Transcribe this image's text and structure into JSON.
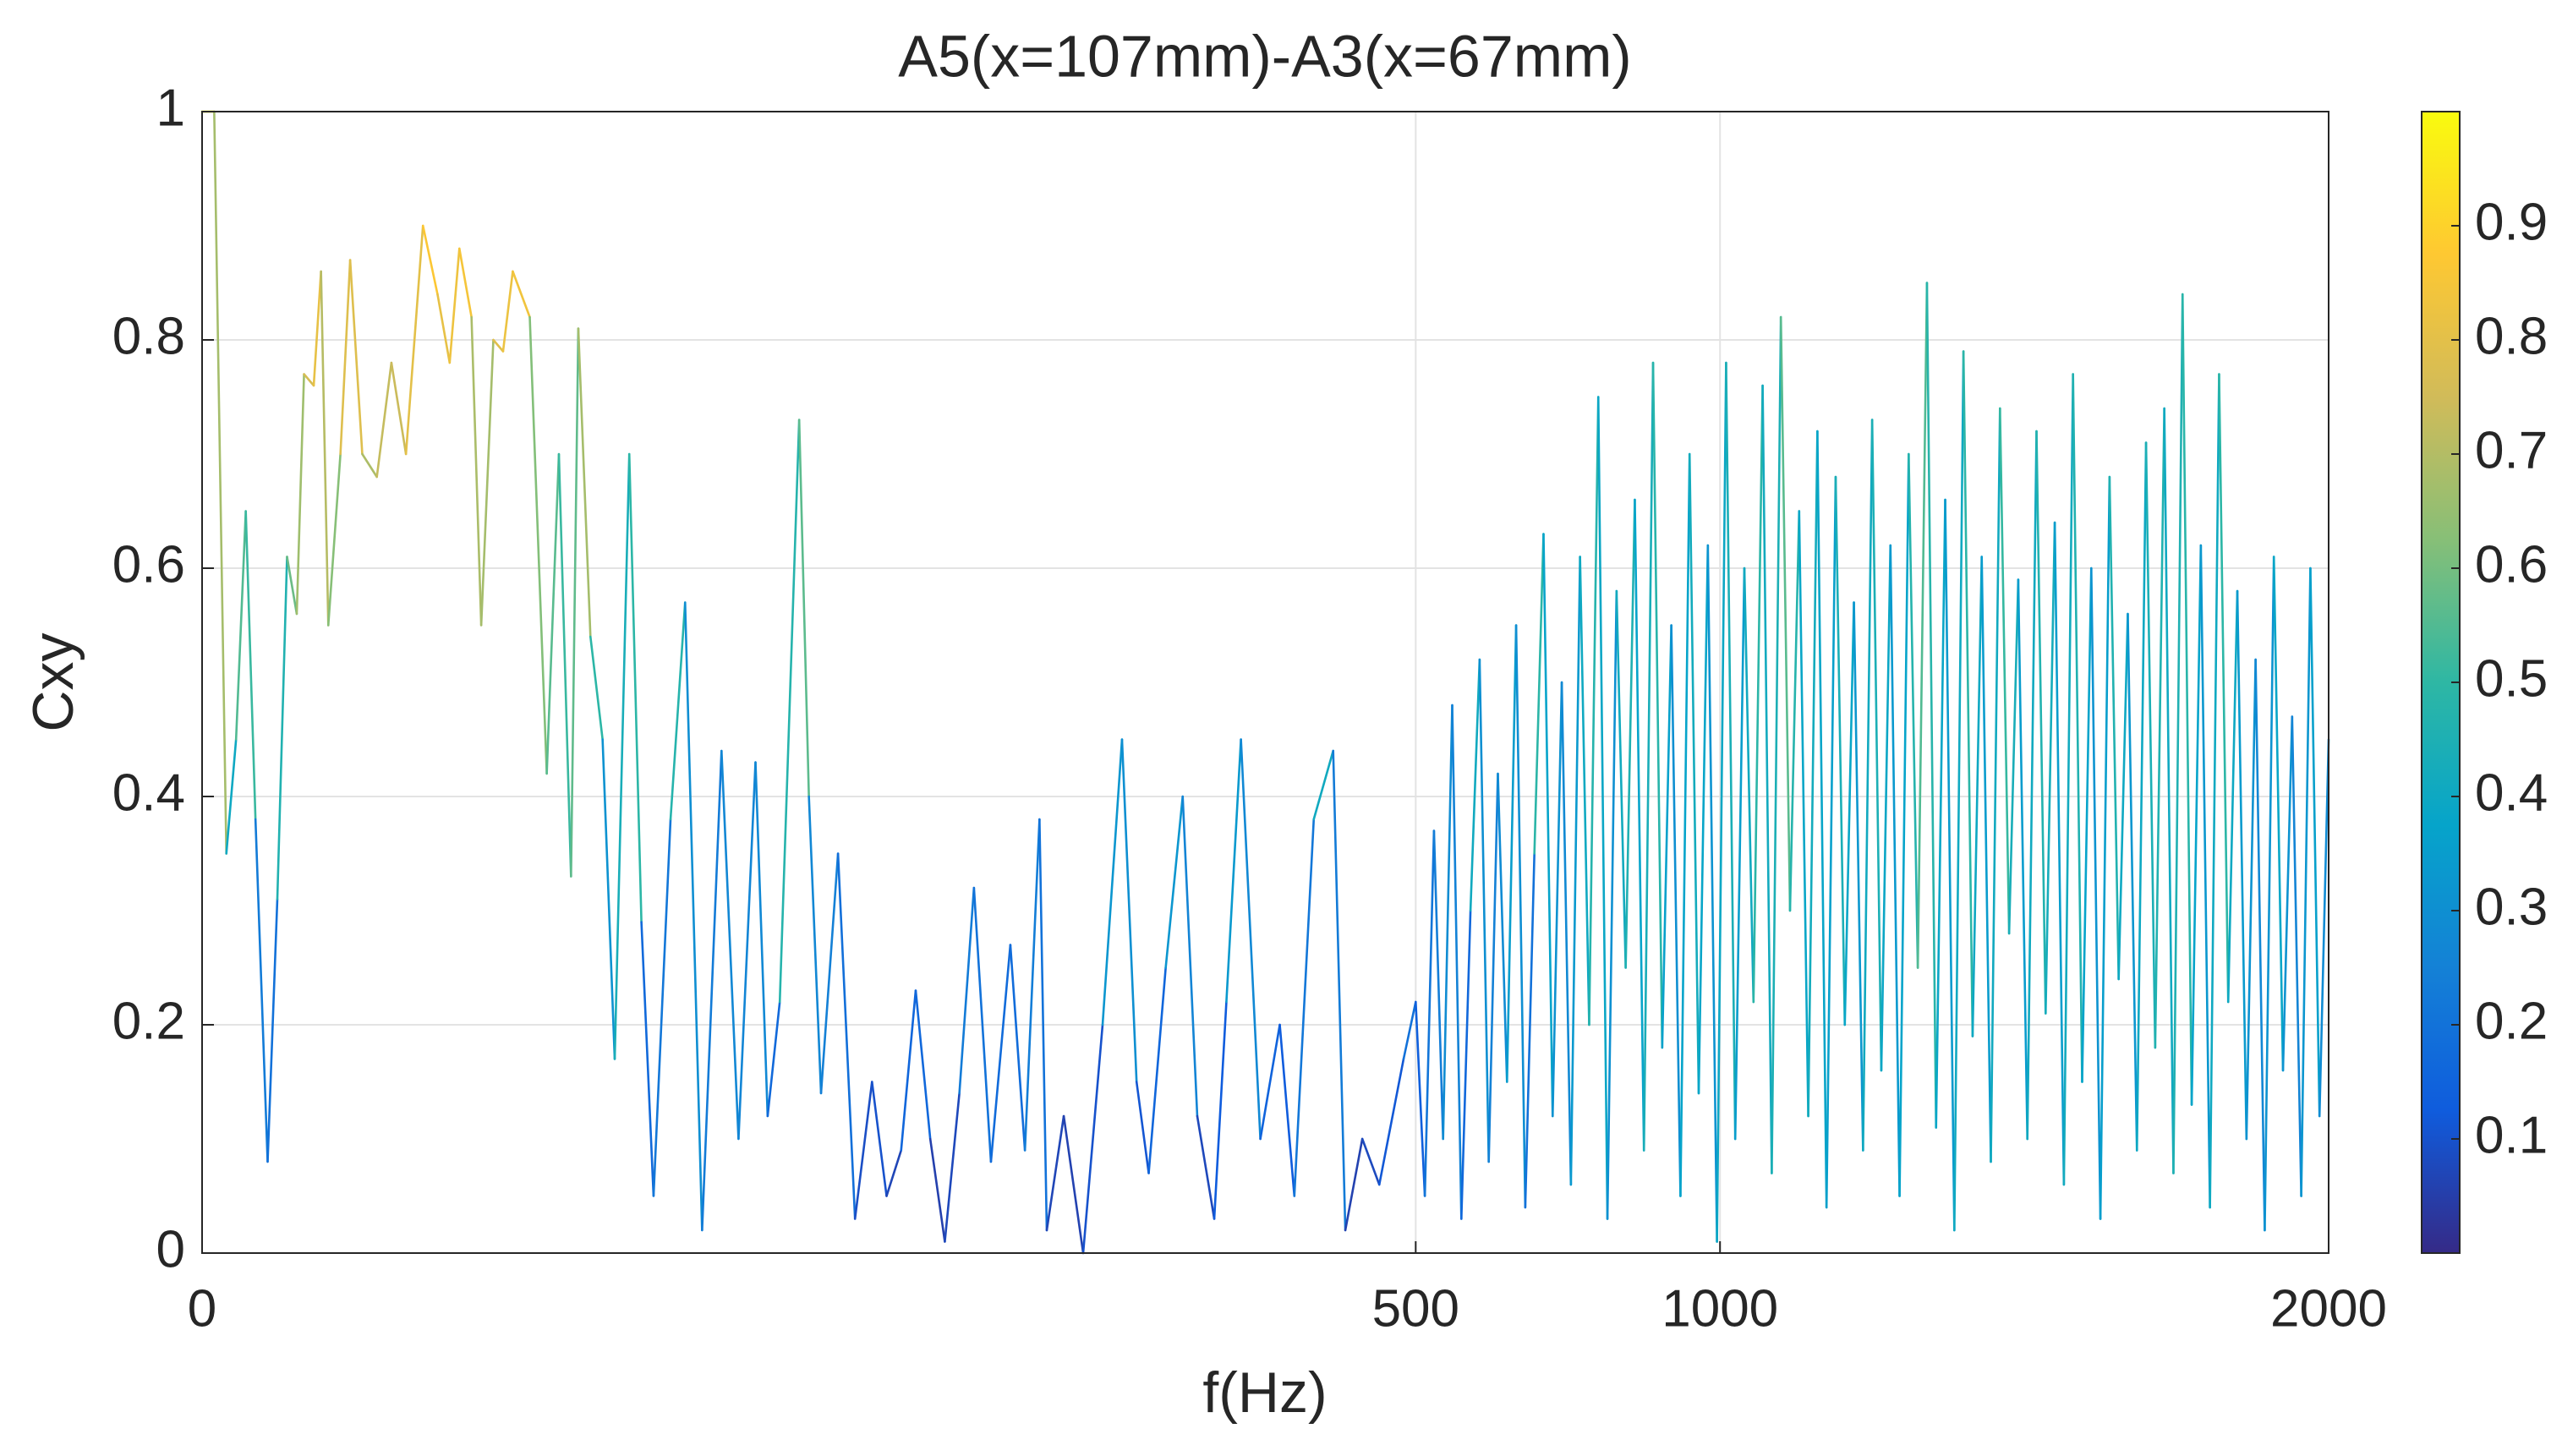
{
  "chart_data": {
    "type": "line",
    "title": "A5(x=107mm)-A3(x=67mm)",
    "xlabel": "f(Hz)",
    "ylabel": "Cxy",
    "x": [
      0,
      5,
      10,
      14,
      18,
      22,
      27,
      31,
      35,
      39,
      42,
      46,
      49,
      52,
      57,
      61,
      66,
      72,
      78,
      84,
      91,
      97,
      102,
      106,
      111,
      115,
      120,
      124,
      128,
      135,
      142,
      147,
      152,
      155,
      160,
      165,
      170,
      176,
      181,
      186,
      193,
      199,
      206,
      214,
      221,
      228,
      233,
      238,
      246,
      250,
      255,
      262,
      269,
      276,
      282,
      288,
      294,
      300,
      306,
      312,
      318,
      325,
      333,
      339,
      345,
      348,
      355,
      363,
      371,
      379,
      385,
      390,
      397,
      404,
      410,
      417,
      422,
      428,
      436,
      444,
      450,
      458,
      466,
      471,
      478,
      485,
      495,
      500,
      515,
      530,
      545,
      560,
      575,
      590,
      605,
      620,
      635,
      650,
      665,
      680,
      695,
      710,
      725,
      740,
      755,
      770,
      785,
      800,
      815,
      830,
      845,
      860,
      875,
      890,
      905,
      920,
      935,
      950,
      965,
      980,
      995,
      1010,
      1025,
      1040,
      1055,
      1070,
      1085,
      1100,
      1115,
      1130,
      1145,
      1160,
      1175,
      1190,
      1205,
      1220,
      1235,
      1250,
      1265,
      1280,
      1295,
      1310,
      1325,
      1340,
      1355,
      1370,
      1385,
      1400,
      1415,
      1430,
      1445,
      1460,
      1475,
      1490,
      1505,
      1520,
      1535,
      1550,
      1565,
      1580,
      1595,
      1610,
      1625,
      1640,
      1655,
      1670,
      1685,
      1700,
      1715,
      1730,
      1745,
      1760,
      1775,
      1790,
      1805,
      1820,
      1835,
      1850,
      1865,
      1880,
      1895,
      1910,
      1925,
      1940,
      1955,
      1970,
      1985,
      2000
    ],
    "series": [
      {
        "name": "Cxy",
        "values": [
          1.0,
          1.0,
          0.35,
          0.45,
          0.65,
          0.38,
          0.08,
          0.31,
          0.61,
          0.56,
          0.77,
          0.76,
          0.86,
          0.55,
          0.7,
          0.87,
          0.7,
          0.68,
          0.78,
          0.7,
          0.9,
          0.84,
          0.78,
          0.88,
          0.82,
          0.55,
          0.8,
          0.79,
          0.86,
          0.82,
          0.42,
          0.7,
          0.33,
          0.81,
          0.54,
          0.45,
          0.17,
          0.7,
          0.29,
          0.05,
          0.38,
          0.57,
          0.02,
          0.44,
          0.1,
          0.43,
          0.12,
          0.22,
          0.73,
          0.4,
          0.14,
          0.35,
          0.03,
          0.15,
          0.05,
          0.09,
          0.23,
          0.1,
          0.01,
          0.14,
          0.32,
          0.08,
          0.27,
          0.09,
          0.38,
          0.02,
          0.12,
          0.0,
          0.2,
          0.45,
          0.15,
          0.07,
          0.25,
          0.4,
          0.12,
          0.03,
          0.22,
          0.45,
          0.1,
          0.2,
          0.05,
          0.38,
          0.44,
          0.02,
          0.1,
          0.06,
          0.17,
          0.22,
          0.05,
          0.37,
          0.1,
          0.48,
          0.03,
          0.3,
          0.52,
          0.08,
          0.42,
          0.15,
          0.55,
          0.04,
          0.35,
          0.63,
          0.12,
          0.5,
          0.06,
          0.61,
          0.2,
          0.75,
          0.03,
          0.58,
          0.25,
          0.66,
          0.09,
          0.78,
          0.18,
          0.55,
          0.05,
          0.7,
          0.14,
          0.62,
          0.01,
          0.78,
          0.1,
          0.6,
          0.22,
          0.76,
          0.07,
          0.82,
          0.3,
          0.65,
          0.12,
          0.72,
          0.04,
          0.68,
          0.2,
          0.57,
          0.09,
          0.73,
          0.16,
          0.62,
          0.05,
          0.7,
          0.25,
          0.85,
          0.11,
          0.66,
          0.02,
          0.79,
          0.19,
          0.61,
          0.08,
          0.74,
          0.28,
          0.59,
          0.1,
          0.72,
          0.21,
          0.64,
          0.06,
          0.77,
          0.15,
          0.6,
          0.03,
          0.68,
          0.24,
          0.56,
          0.09,
          0.71,
          0.18,
          0.74,
          0.07,
          0.84,
          0.13,
          0.62,
          0.04,
          0.77,
          0.22,
          0.58,
          0.1,
          0.52,
          0.02,
          0.61,
          0.16,
          0.47,
          0.05,
          0.6,
          0.12,
          0.45
        ]
      }
    ],
    "xlim": [
      0,
      2000
    ],
    "xticks": [
      0,
      500,
      1000,
      2000
    ],
    "ylim": [
      0,
      1
    ],
    "yticks": [
      0,
      0.2,
      0.4,
      0.6,
      0.8,
      1
    ],
    "grid": true,
    "colorbar": {
      "clim": [
        0,
        1
      ],
      "ticks": [
        0.1,
        0.2,
        0.3,
        0.4,
        0.5,
        0.6,
        0.7,
        0.8,
        0.9
      ],
      "colormap": [
        "#352a87",
        "#0f5cdd",
        "#1481d6",
        "#06a4ca",
        "#2eb7a4",
        "#87bf77",
        "#d1bb59",
        "#fec832",
        "#f9fb0e"
      ]
    }
  }
}
